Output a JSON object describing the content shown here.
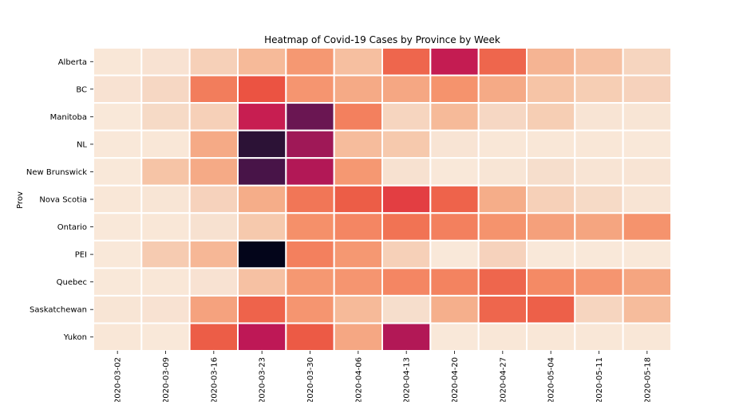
{
  "chart_data": {
    "type": "heatmap",
    "title": "Heatmap of Covid-19 Cases by Province by Week",
    "xlabel": "",
    "ylabel": "Prov",
    "x": [
      "2020-03-02",
      "2020-03-09",
      "2020-03-16",
      "2020-03-23",
      "2020-03-30",
      "2020-04-06",
      "2020-04-13",
      "2020-04-20",
      "2020-04-27",
      "2020-05-04",
      "2020-05-11",
      "2020-05-18"
    ],
    "y": [
      "Alberta",
      "BC",
      "Manitoba",
      "NL",
      "New Brunswick",
      "Nova Scotia",
      "Ontario",
      "PEI",
      "Quebec",
      "Saskatchewan",
      "Yukon"
    ],
    "values": [
      [
        0.03,
        0.06,
        0.15,
        0.24,
        0.37,
        0.22,
        0.53,
        0.78,
        0.53,
        0.26,
        0.21,
        0.13
      ],
      [
        0.06,
        0.12,
        0.46,
        0.59,
        0.38,
        0.3,
        0.31,
        0.39,
        0.3,
        0.2,
        0.16,
        0.14
      ],
      [
        0.02,
        0.11,
        0.15,
        0.77,
        0.92,
        0.45,
        0.13,
        0.24,
        0.12,
        0.16,
        0.05,
        0.04
      ],
      [
        0.02,
        0.03,
        0.3,
        0.98,
        0.85,
        0.23,
        0.18,
        0.05,
        0.03,
        0.03,
        0.03,
        0.02
      ],
      [
        0.02,
        0.2,
        0.3,
        0.95,
        0.82,
        0.37,
        0.07,
        0.02,
        0.04,
        0.09,
        0.05,
        0.05
      ],
      [
        0.03,
        0.04,
        0.14,
        0.29,
        0.48,
        0.56,
        0.65,
        0.54,
        0.29,
        0.15,
        0.11,
        0.05
      ],
      [
        0.02,
        0.03,
        0.07,
        0.18,
        0.4,
        0.43,
        0.49,
        0.45,
        0.39,
        0.34,
        0.32,
        0.39
      ],
      [
        0.02,
        0.17,
        0.25,
        1.0,
        0.45,
        0.37,
        0.15,
        0.02,
        0.14,
        0.02,
        0.02,
        0.02
      ],
      [
        0.02,
        0.03,
        0.06,
        0.21,
        0.37,
        0.38,
        0.43,
        0.44,
        0.53,
        0.42,
        0.38,
        0.32
      ],
      [
        0.04,
        0.06,
        0.33,
        0.54,
        0.38,
        0.24,
        0.09,
        0.28,
        0.53,
        0.55,
        0.13,
        0.23
      ],
      [
        0.03,
        0.02,
        0.56,
        0.8,
        0.57,
        0.31,
        0.82,
        0.02,
        0.03,
        0.03,
        0.03,
        0.03
      ]
    ],
    "colormap": "rocket_r",
    "grid": false,
    "legend": "none"
  }
}
